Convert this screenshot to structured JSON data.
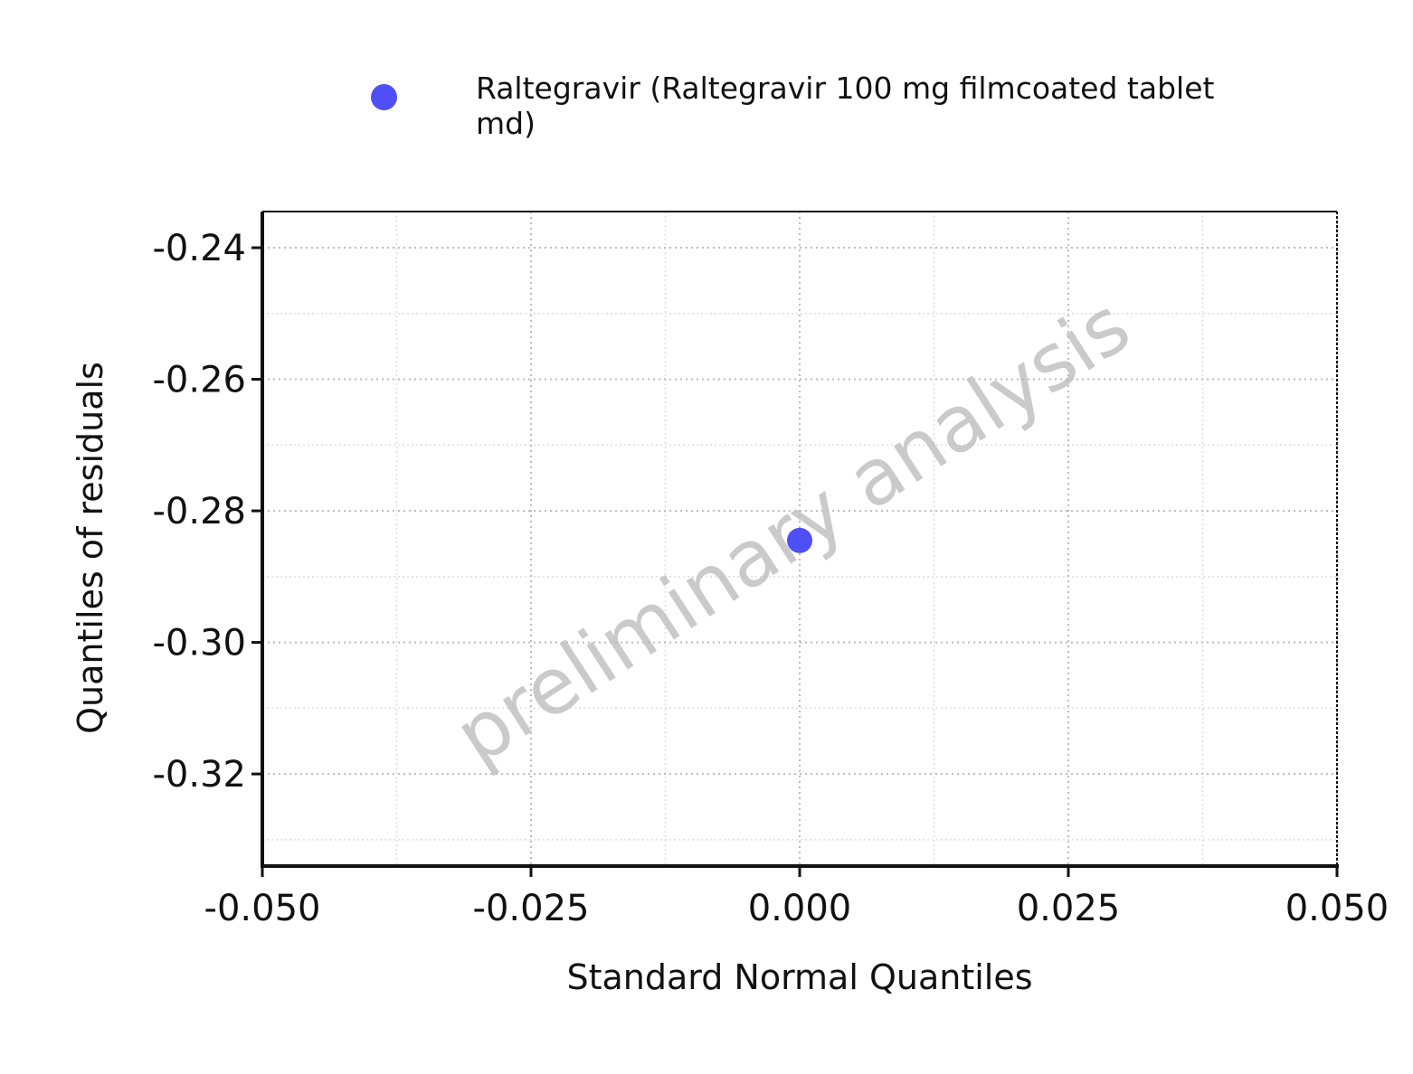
{
  "chart_data": {
    "type": "scatter",
    "title": "",
    "xlabel": "Standard Normal Quantiles",
    "ylabel": "Quantiles of residuals",
    "xlim": [
      -0.05,
      0.05
    ],
    "ylim": [
      -0.334,
      -0.2345
    ],
    "xticks": [
      -0.05,
      -0.025,
      0.0,
      0.025,
      0.05
    ],
    "xtick_labels": [
      "-0.050",
      "-0.025",
      "0.000",
      "0.025",
      "0.050"
    ],
    "yticks": [
      -0.24,
      -0.26,
      -0.28,
      -0.3,
      -0.32
    ],
    "ytick_labels": [
      "-0.24",
      "-0.26",
      "-0.28",
      "-0.30",
      "-0.32"
    ],
    "grid": true,
    "legend_position": "top",
    "series": [
      {
        "name": "Raltegravir (Raltegravir 100 mg filmcoated tablet md)",
        "color": "#4f4ff7",
        "points": [
          {
            "x": 0.0,
            "y": -0.2845
          }
        ]
      }
    ],
    "watermark": "preliminary analysis"
  }
}
